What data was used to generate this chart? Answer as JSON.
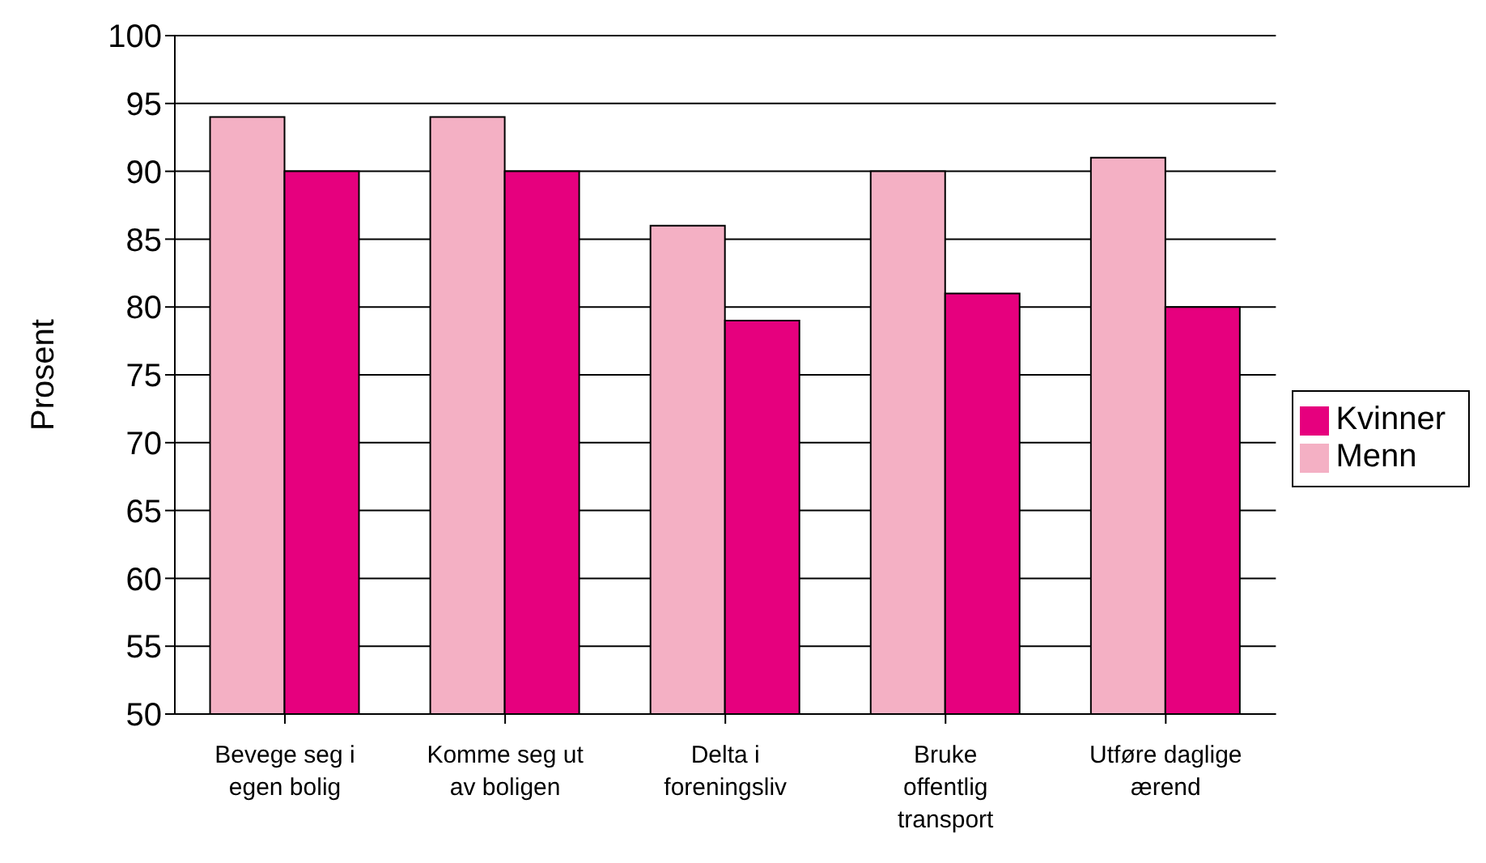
{
  "chart_data": {
    "type": "bar",
    "ylabel": "Prosent",
    "categories": [
      "Bevege seg i egen bolig",
      "Komme seg ut av boligen",
      "Delta i foreningsliv",
      "Bruke offentlig transport",
      "Utføre daglige ærend"
    ],
    "series": [
      {
        "name": "Menn",
        "color": "#f4b0c4",
        "values": [
          94,
          94,
          86,
          90,
          91
        ]
      },
      {
        "name": "Kvinner",
        "color": "#e6007e",
        "values": [
          90,
          90,
          79,
          81,
          80
        ]
      }
    ],
    "ylim": [
      50,
      100
    ],
    "yticks": [
      50,
      55,
      60,
      65,
      70,
      75,
      80,
      85,
      90,
      95,
      100
    ],
    "grid": "y",
    "legend": "right"
  }
}
